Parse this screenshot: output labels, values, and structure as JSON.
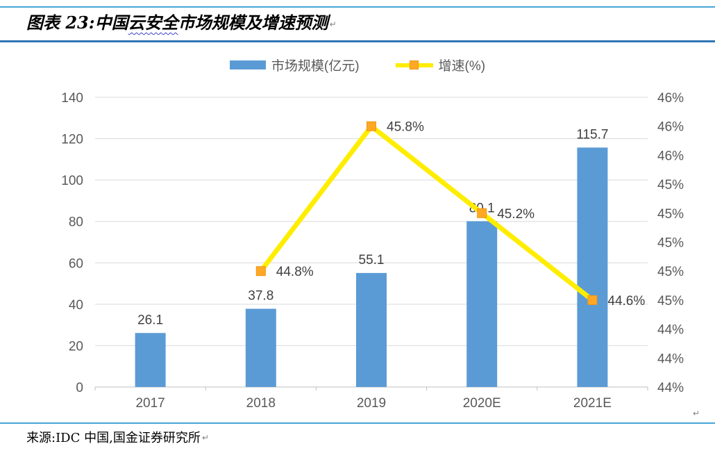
{
  "header": {
    "title_prefix": "图表 23:",
    "title_before_wavy": "中国",
    "title_wavy": "云安全",
    "title_after_wavy": "市场规模及增速预测",
    "paragraph_mark": "↵"
  },
  "footer": {
    "source": "来源:IDC 中国,国金证券研究所",
    "paragraph_mark": "↵",
    "cell_mark": "↵"
  },
  "colors": {
    "bar": "#5B9BD5",
    "line": "#FFED00",
    "marker": "#FFA826",
    "marker_border": "#EE9611",
    "gridline": "#D9D9D9",
    "axis_line": "#BFBFBF",
    "tick_text": "#595959",
    "data_label_text": "#404040",
    "title_rule": "#2E75B6",
    "thin_rule": "#45A5D6"
  },
  "chart_data": {
    "type": "bar+line combo",
    "title": "中国云安全市场规模及增速预测",
    "categories": [
      "2017",
      "2018",
      "2019",
      "2020E",
      "2021E"
    ],
    "series": [
      {
        "name": "市场规模(亿元)",
        "type": "bar",
        "axis": "left",
        "values": [
          26.1,
          37.8,
          55.1,
          80.1,
          115.7
        ],
        "labels": [
          "26.1",
          "37.8",
          "55.1",
          "80.1",
          "115.7"
        ]
      },
      {
        "name": "增速(%)",
        "type": "line",
        "axis": "right",
        "values": [
          null,
          44.8,
          45.8,
          45.2,
          44.6
        ],
        "labels": [
          null,
          "44.8%",
          "45.8%",
          "45.2%",
          "44.6%"
        ]
      }
    ],
    "left_axis": {
      "min": 0,
      "max": 140,
      "step": 20,
      "tick_labels": [
        "0",
        "20",
        "40",
        "60",
        "80",
        "100",
        "120",
        "140"
      ]
    },
    "right_axis": {
      "min": 44.0,
      "max": 46.0,
      "step": 0.2,
      "tick_labels_bottom_to_top": [
        "44%",
        "44%",
        "44%",
        "45%",
        "45%",
        "45%",
        "45%",
        "45%",
        "46%",
        "46%",
        "46%"
      ]
    },
    "legend_position": "top",
    "grid": true
  }
}
